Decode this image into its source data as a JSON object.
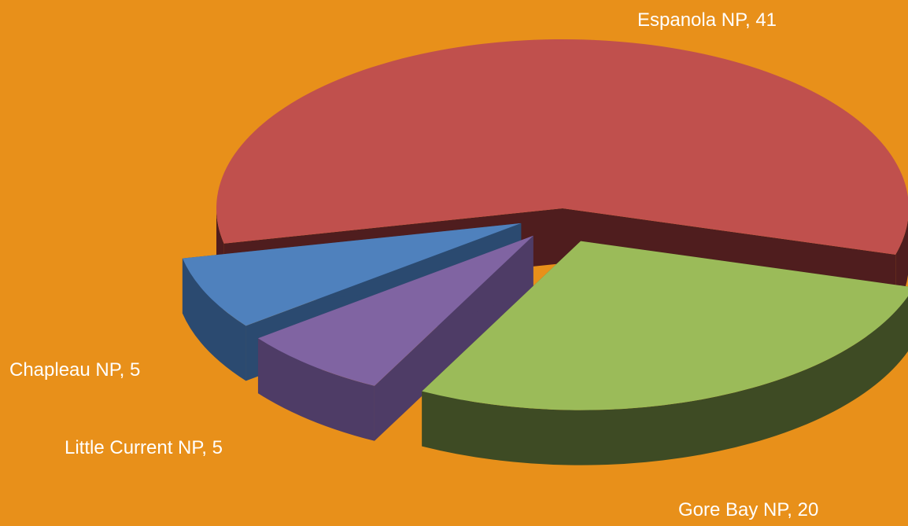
{
  "background": "#E8901A",
  "chart_data": {
    "type": "pie",
    "style": "3d-exploded",
    "title": "",
    "slices": [
      {
        "label": "Espanola NP",
        "value": 41,
        "display": "Espanola NP, 41",
        "color": "#C0504D",
        "side": "#4F1D1E"
      },
      {
        "label": "Gore Bay NP",
        "value": 20,
        "display": "Gore Bay NP, 20",
        "color": "#9BBB59",
        "side": "#3E4B24"
      },
      {
        "label": "Little Current NP",
        "value": 5,
        "display": "Little Current NP, 5",
        "color": "#8064A2",
        "side": "#4E3C66"
      },
      {
        "label": "Chapleau NP",
        "value": 5,
        "display": "Chapleau NP, 5",
        "color": "#4F81BD",
        "side": "#2B4A70"
      }
    ]
  }
}
